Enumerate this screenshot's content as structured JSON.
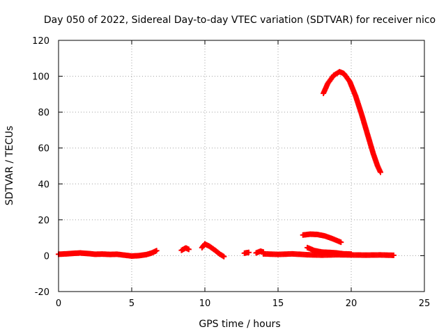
{
  "chart_data": {
    "type": "scatter",
    "title": "Day 050 of 2022, Sidereal Day-to-day VTEC variation (SDTVAR) for receiver nico",
    "xlabel": "GPS time / hours",
    "ylabel": "SDTVAR / TECUs",
    "xlim": [
      0,
      25
    ],
    "ylim": [
      -20,
      120
    ],
    "xticks": [
      "0",
      "5",
      "10",
      "15",
      "20",
      "25"
    ],
    "yticks": [
      "-20",
      "0",
      "20",
      "40",
      "60",
      "80",
      "100",
      "120"
    ],
    "grid": true,
    "marker": "+",
    "series": [
      {
        "color": "#ff0000",
        "segments": [
          [
            [
              0.0,
              0.8
            ],
            [
              0.5,
              1.0
            ],
            [
              1.0,
              1.3
            ],
            [
              1.5,
              1.5
            ],
            [
              2.0,
              1.2
            ],
            [
              2.5,
              0.8
            ],
            [
              3.0,
              0.9
            ],
            [
              3.5,
              0.7
            ],
            [
              4.0,
              0.8
            ],
            [
              4.5,
              0.3
            ],
            [
              5.0,
              -0.2
            ],
            [
              5.5,
              0.0
            ],
            [
              6.0,
              0.6
            ],
            [
              6.4,
              1.6
            ],
            [
              6.7,
              2.8
            ]
          ],
          [
            [
              8.4,
              3.0
            ],
            [
              8.7,
              4.3
            ],
            [
              8.9,
              3.5
            ]
          ],
          [
            [
              9.8,
              4.5
            ],
            [
              10.0,
              6.5
            ],
            [
              10.3,
              5.3
            ],
            [
              10.7,
              3.0
            ],
            [
              11.0,
              1.0
            ],
            [
              11.3,
              -0.5
            ]
          ],
          [
            [
              12.7,
              1.4
            ],
            [
              13.0,
              1.8
            ]
          ],
          [
            [
              13.5,
              1.5
            ],
            [
              13.8,
              2.5
            ],
            [
              14.0,
              2.0
            ]
          ],
          [
            [
              14.0,
              1.0
            ],
            [
              15.0,
              0.7
            ],
            [
              16.0,
              1.0
            ],
            [
              17.0,
              0.5
            ],
            [
              18.0,
              0.3
            ],
            [
              19.0,
              0.5
            ],
            [
              20.0,
              0.4
            ],
            [
              21.0,
              0.3
            ],
            [
              22.0,
              0.4
            ],
            [
              22.9,
              0.2
            ]
          ],
          [
            [
              17.0,
              4.5
            ],
            [
              17.5,
              2.8
            ],
            [
              18.0,
              2.0
            ],
            [
              18.5,
              1.8
            ],
            [
              19.0,
              1.5
            ],
            [
              19.5,
              1.0
            ],
            [
              20.0,
              0.9
            ]
          ],
          [
            [
              16.7,
              11.5
            ],
            [
              17.2,
              12.0
            ],
            [
              17.7,
              11.8
            ],
            [
              18.2,
              11.0
            ],
            [
              18.7,
              9.5
            ],
            [
              19.3,
              7.5
            ]
          ],
          [
            [
              18.1,
              90.5
            ],
            [
              18.4,
              96.0
            ],
            [
              18.8,
              100.5
            ],
            [
              19.2,
              102.5
            ],
            [
              19.5,
              101.5
            ],
            [
              19.9,
              97.0
            ],
            [
              20.3,
              89.0
            ],
            [
              20.7,
              79.0
            ],
            [
              21.1,
              68.0
            ],
            [
              21.5,
              57.0
            ],
            [
              21.8,
              50.0
            ],
            [
              22.0,
              46.5
            ]
          ]
        ]
      }
    ]
  }
}
